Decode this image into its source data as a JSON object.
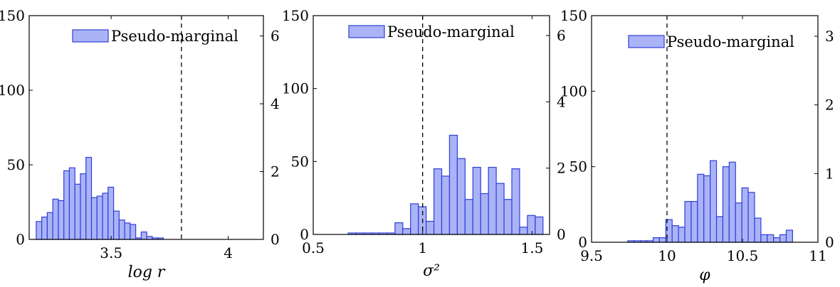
{
  "chart_data": [
    {
      "type": "bar",
      "xlabel": "log r",
      "legend": "Pseudo-marginal",
      "legend_position": "top",
      "xlim": [
        3.15,
        4.15
      ],
      "ylim_left": [
        0,
        150
      ],
      "ylim_right": [
        0,
        6.6
      ],
      "xticks": [
        "3.5",
        "4"
      ],
      "xtick_values": [
        3.5,
        4.0
      ],
      "yticks_left": [
        "0",
        "50",
        "100",
        "150"
      ],
      "ytick_left_values": [
        0,
        50,
        100,
        150
      ],
      "yticks_right": [
        "0",
        "2",
        "4",
        "6"
      ],
      "ytick_right_values": [
        0,
        2,
        4,
        6
      ],
      "reference_line_x": 3.8,
      "bin_start": 3.18,
      "bin_width": 0.0236,
      "values": [
        12,
        15,
        18,
        27,
        26,
        46,
        48,
        37,
        44,
        55,
        28,
        29,
        31,
        35,
        19,
        13,
        11,
        10,
        1,
        5,
        2,
        1,
        1,
        0,
        0,
        0,
        0,
        0,
        0,
        0,
        0,
        0,
        0,
        0,
        0,
        0,
        0,
        0,
        0,
        0
      ]
    },
    {
      "type": "bar",
      "xlabel": "σ²",
      "legend": "Pseudo-marginal",
      "legend_position": "top",
      "xlim": [
        0.5,
        1.58
      ],
      "ylim_left": [
        0,
        150
      ],
      "ylim_right": [
        0,
        6.6
      ],
      "xticks": [
        "0.5",
        "1",
        "1.5"
      ],
      "xtick_values": [
        0.5,
        1.0,
        1.5
      ],
      "yticks_left": [
        "0",
        "50",
        "100",
        "150"
      ],
      "ytick_left_values": [
        0,
        50,
        100,
        150
      ],
      "yticks_right": [
        "0",
        "2",
        "4",
        "6"
      ],
      "ytick_right_values": [
        0,
        2,
        4,
        6
      ],
      "reference_line_x": 1.0,
      "bin_start": 0.66,
      "bin_width": 0.0356,
      "values": [
        1,
        1,
        1,
        1,
        1,
        1,
        8,
        4,
        21,
        19,
        9,
        45,
        40,
        68,
        52,
        24,
        46,
        28,
        46,
        35,
        24,
        45,
        5,
        13,
        12,
        9,
        4,
        3,
        9
      ]
    },
    {
      "type": "bar",
      "xlabel": "φ",
      "legend": "Pseudo-marginal",
      "legend_position": "top",
      "xlim": [
        9.5,
        11
      ],
      "ylim_left": [
        0,
        150
      ],
      "ylim_right": [
        0,
        3.3
      ],
      "xticks": [
        "9.5",
        "10",
        "10.5",
        "11"
      ],
      "xtick_values": [
        9.5,
        10.0,
        10.5,
        11.0
      ],
      "yticks_left": [
        "0",
        "50",
        "100",
        "150"
      ],
      "ytick_left_values": [
        0,
        50,
        100,
        150
      ],
      "yticks_right": [
        "0",
        "1",
        "2",
        "3"
      ],
      "ytick_right_values": [
        0,
        1,
        2,
        3
      ],
      "reference_line_x": 10.0,
      "bin_start": 9.74,
      "bin_width": 0.042,
      "values": [
        1,
        1,
        1,
        1,
        3,
        3,
        15,
        11,
        10,
        27,
        27,
        45,
        44,
        54,
        17,
        50,
        53,
        26,
        36,
        33,
        16,
        5,
        5,
        3,
        5,
        8
      ]
    }
  ]
}
